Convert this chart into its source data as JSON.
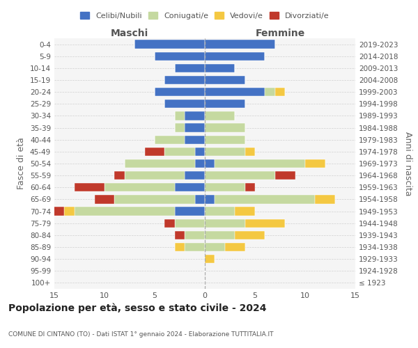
{
  "age_groups": [
    "100+",
    "95-99",
    "90-94",
    "85-89",
    "80-84",
    "75-79",
    "70-74",
    "65-69",
    "60-64",
    "55-59",
    "50-54",
    "45-49",
    "40-44",
    "35-39",
    "30-34",
    "25-29",
    "20-24",
    "15-19",
    "10-14",
    "5-9",
    "0-4"
  ],
  "birth_years": [
    "≤ 1923",
    "1924-1928",
    "1929-1933",
    "1934-1938",
    "1939-1943",
    "1944-1948",
    "1949-1953",
    "1954-1958",
    "1959-1963",
    "1964-1968",
    "1969-1973",
    "1974-1978",
    "1979-1983",
    "1984-1988",
    "1989-1993",
    "1994-1998",
    "1999-2003",
    "2004-2008",
    "2009-2013",
    "2014-2018",
    "2019-2023"
  ],
  "maschi": {
    "celibi": [
      0,
      0,
      0,
      0,
      0,
      0,
      3,
      1,
      3,
      2,
      1,
      1,
      2,
      2,
      2,
      4,
      5,
      4,
      3,
      5,
      7
    ],
    "coniugati": [
      0,
      0,
      0,
      2,
      2,
      3,
      10,
      8,
      7,
      6,
      7,
      3,
      3,
      1,
      1,
      0,
      0,
      0,
      0,
      0,
      0
    ],
    "vedovi": [
      0,
      0,
      0,
      1,
      0,
      0,
      1,
      0,
      0,
      0,
      0,
      0,
      0,
      0,
      0,
      0,
      0,
      0,
      0,
      0,
      0
    ],
    "divorziati": [
      0,
      0,
      0,
      0,
      1,
      1,
      2,
      2,
      3,
      1,
      0,
      2,
      0,
      0,
      0,
      0,
      0,
      0,
      0,
      0,
      0
    ]
  },
  "femmine": {
    "celibi": [
      0,
      0,
      0,
      0,
      0,
      0,
      0,
      1,
      0,
      0,
      1,
      0,
      0,
      0,
      0,
      4,
      6,
      4,
      3,
      6,
      7
    ],
    "coniugati": [
      0,
      0,
      0,
      2,
      3,
      4,
      3,
      10,
      4,
      7,
      9,
      4,
      4,
      4,
      3,
      0,
      1,
      0,
      0,
      0,
      0
    ],
    "vedovi": [
      0,
      0,
      1,
      2,
      3,
      4,
      2,
      2,
      0,
      0,
      2,
      1,
      0,
      0,
      0,
      0,
      1,
      0,
      0,
      0,
      0
    ],
    "divorziati": [
      0,
      0,
      0,
      0,
      0,
      0,
      0,
      0,
      1,
      2,
      0,
      0,
      0,
      0,
      0,
      0,
      0,
      0,
      0,
      0,
      0
    ]
  },
  "colors": {
    "celibi": "#4472c4",
    "coniugati": "#c5d9a0",
    "vedovi": "#f4c842",
    "divorziati": "#c0392b"
  },
  "xlim": 15,
  "title": "Popolazione per età, sesso e stato civile - 2024",
  "subtitle": "COMUNE DI CINTANO (TO) - Dati ISTAT 1° gennaio 2024 - Elaborazione TUTTITALIA.IT",
  "ylabel_left": "Fasce di età",
  "ylabel_right": "Anni di nascita",
  "xlabel_maschi": "Maschi",
  "xlabel_femmine": "Femmine",
  "bg_color": "#f5f5f5"
}
